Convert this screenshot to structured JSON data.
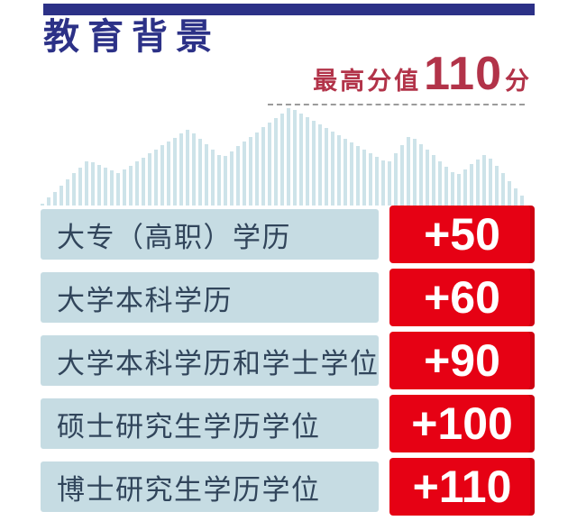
{
  "header": {
    "title": "教育背景",
    "max_score_prefix": "最高分值",
    "max_score_value": "110",
    "max_score_suffix": "分"
  },
  "rows": [
    {
      "label": "大专（高职）学历",
      "score": "+50"
    },
    {
      "label": "大学本科学历",
      "score": "+60"
    },
    {
      "label": "大学本科学历和学士学位",
      "score": "+90"
    },
    {
      "label": "硕士研究生学历学位",
      "score": "+100"
    },
    {
      "label": "博士研究生学历学位",
      "score": "+110"
    }
  ],
  "colors": {
    "navy": "#2c3187",
    "crimson": "#b23349",
    "red": "#e60114",
    "lightblue": "#c6dce3",
    "mountain": "#cde3e9",
    "rowtext": "#31455b",
    "dash": "#9b9b9b"
  },
  "chart_data": {
    "type": "table",
    "title": "教育背景",
    "annotation": "最高分值110分",
    "categories": [
      "大专（高职）学历",
      "大学本科学历",
      "大学本科学历和学士学位",
      "硕士研究生学历学位",
      "博士研究生学历学位"
    ],
    "values": [
      50,
      60,
      90,
      100,
      110
    ],
    "value_format": "+{value}",
    "max_value": 110,
    "legend_position": "none",
    "grid": false
  }
}
